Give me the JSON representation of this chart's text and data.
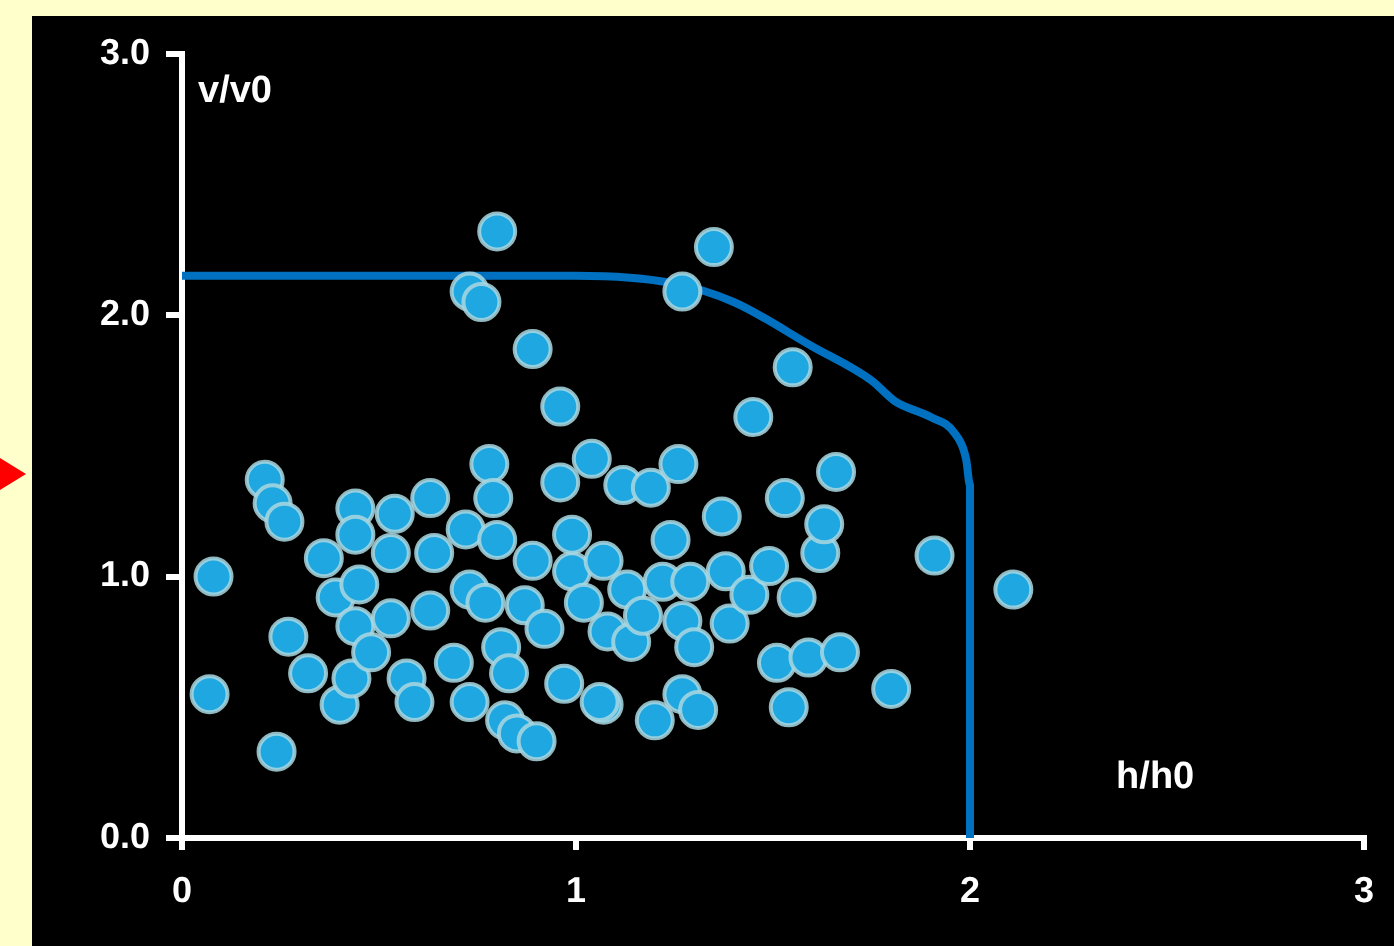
{
  "chart_data": {
    "type": "scatter",
    "xlabel": "h/h0",
    "ylabel": "v/v0",
    "xlim": [
      0,
      3
    ],
    "ylim": [
      0,
      3
    ],
    "xticks": [
      0,
      1,
      2,
      3
    ],
    "yticks": [
      {
        "value": 0,
        "label": "0.0"
      },
      {
        "value": 1,
        "label": "1.0"
      },
      {
        "value": 2,
        "label": "2.0"
      },
      {
        "value": 3,
        "label": "3.0"
      }
    ],
    "grid": false,
    "legend": false,
    "series": [
      {
        "type": "line",
        "color": "#0070c0",
        "marker": "none",
        "line_style": "solid",
        "x": [
          0,
          0.5,
          1.0,
          1.25,
          1.4,
          1.6,
          1.75,
          1.81,
          1.9,
          1.96,
          1.99,
          2.0,
          2.0
        ],
        "values": [
          2.15,
          2.15,
          2.15,
          2.12,
          2.05,
          1.88,
          1.75,
          1.67,
          1.61,
          1.55,
          1.45,
          1.35,
          0
        ]
      },
      {
        "type": "scatter",
        "color": "#1ea7e1",
        "marker": "circle",
        "x": [
          0.08,
          0.07,
          0.24,
          0.21,
          0.23,
          0.26,
          0.27,
          0.32,
          0.36,
          0.39,
          0.4,
          0.44,
          0.44,
          0.45,
          0.44,
          0.43,
          0.48,
          0.54,
          0.53,
          0.53,
          0.57,
          0.59,
          0.63,
          0.63,
          0.64,
          0.69,
          0.72,
          0.73,
          0.73,
          0.77,
          0.78,
          0.79,
          0.8,
          0.81,
          0.82,
          0.83,
          0.85,
          0.9,
          0.87,
          0.89,
          0.92,
          0.96,
          0.97,
          0.99,
          1.02,
          1.04,
          1.07,
          1.08,
          1.07,
          1.12,
          1.13,
          1.14,
          1.17,
          1.19,
          1.2,
          1.22,
          1.26,
          1.24,
          1.27,
          1.27,
          1.29,
          1.3,
          1.31,
          1.37,
          1.38,
          1.39,
          1.44,
          1.49,
          1.51,
          1.53,
          1.56,
          1.54,
          1.59,
          1.62,
          1.63,
          1.66,
          1.67,
          1.8,
          1.91,
          2.11,
          1.55,
          1.45,
          1.35,
          1.27,
          0.8,
          0.73,
          0.76,
          0.89,
          0.96,
          0.99,
          1.06
        ],
        "values": [
          1.0,
          0.55,
          0.33,
          1.37,
          1.28,
          1.21,
          0.77,
          0.63,
          1.07,
          0.92,
          0.51,
          1.26,
          1.16,
          0.97,
          0.81,
          0.61,
          0.71,
          1.24,
          1.09,
          0.84,
          0.61,
          0.52,
          0.87,
          1.3,
          1.09,
          0.67,
          1.18,
          0.95,
          0.52,
          0.9,
          1.43,
          1.3,
          1.14,
          0.73,
          0.45,
          0.63,
          0.4,
          0.37,
          0.89,
          1.06,
          0.8,
          1.36,
          0.59,
          1.02,
          0.9,
          1.45,
          1.06,
          0.79,
          0.51,
          1.35,
          0.95,
          0.75,
          0.85,
          1.34,
          0.45,
          0.98,
          1.43,
          1.14,
          0.83,
          0.55,
          0.98,
          0.73,
          0.49,
          1.23,
          1.02,
          0.82,
          0.93,
          1.04,
          0.67,
          1.3,
          0.92,
          0.5,
          0.69,
          1.09,
          1.2,
          1.4,
          0.71,
          0.57,
          1.08,
          0.95,
          1.8,
          1.61,
          2.26,
          2.09,
          2.32,
          2.09,
          2.05,
          1.87,
          1.65,
          1.16,
          0.52
        ]
      }
    ]
  }
}
